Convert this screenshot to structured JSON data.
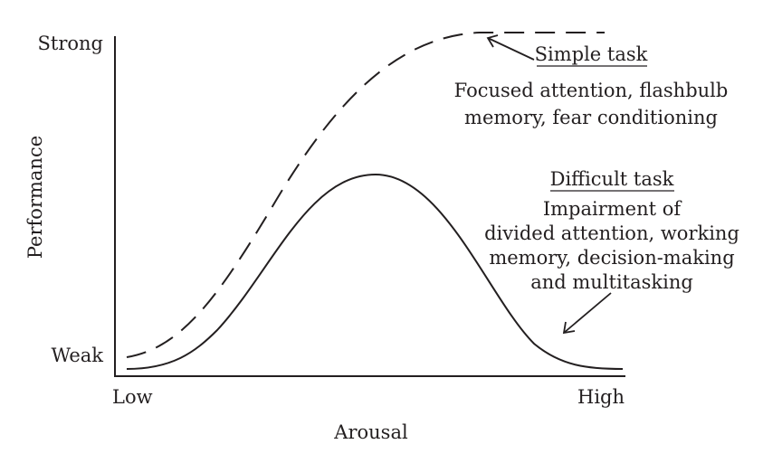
{
  "axes": {
    "y_label": "Performance",
    "y_top": "Strong",
    "y_bottom": "Weak",
    "x_label": "Arousal",
    "x_left": "Low",
    "x_right": "High"
  },
  "curves": {
    "simple": {
      "style": "dashed",
      "title": "Simple task",
      "lines": [
        "Focused attention, flashbulb",
        "memory, fear conditioning"
      ]
    },
    "difficult": {
      "style": "solid",
      "title": "Difficult task",
      "lines": [
        "Impairment of",
        "divided attention, working",
        "memory, decision-making",
        "and multitasking"
      ]
    }
  },
  "colors": {
    "ink": "#231f20",
    "background": "#ffffff"
  }
}
